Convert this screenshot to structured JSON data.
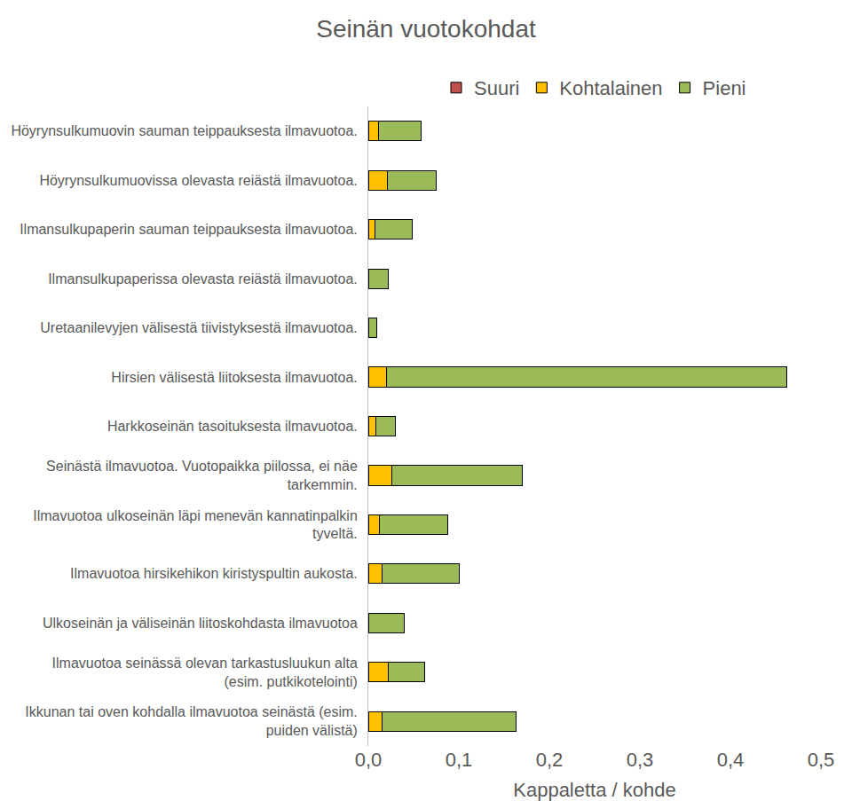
{
  "chart_data": {
    "type": "bar",
    "orientation": "horizontal",
    "stacked": true,
    "title": "Seinän vuotokohdat",
    "x_label": "Kappaletta / kohde",
    "legend": "top",
    "grid": false,
    "categories": [
      "Höyrynsulkumuovin sauman teippauksesta ilmavuotoa.",
      "Höyrynsulkumuovissa olevasta reiästä ilmavuotoa.",
      "Ilmansulkupaperin sauman teippauksesta ilmavuotoa.",
      "Ilmansulkupaperissa olevasta reiästä ilmavuotoa.",
      "Uretaanilevyjen välisestä tiivistyksestä ilmavuotoa.",
      "Hirsien välisestä liitoksesta ilmavuotoa.",
      "Harkkoseinän tasoituksesta ilmavuotoa.",
      "Seinästä ilmavuotoa. Vuotopaikka piilossa, ei näe tarkemmin.",
      "Ilmavuotoa ulkoseinän läpi menevän kannatinpalkin tyveltä.",
      "Ilmavuotoa hirsikehikon kiristyspultin aukosta.",
      "Ulkoseinän ja väliseinän liitoskohdasta ilmavuotoa",
      "Ilmavuotoa seinässä olevan tarkastusluukun alta (esim. putkikotelointi)",
      "Ikkunan tai oven kohdalla ilmavuotoa seinästä (esim. puiden välistä)"
    ],
    "series": [
      {
        "name": "Suuri",
        "color": "#c0504d",
        "values": [
          0,
          0,
          0,
          0,
          0,
          0,
          0,
          0,
          0,
          0,
          0,
          0,
          0
        ]
      },
      {
        "name": "Kohtalainen",
        "color": "#ffc000",
        "values": [
          0.011,
          0.021,
          0.007,
          0,
          0,
          0.02,
          0.008,
          0.026,
          0.012,
          0.015,
          0,
          0.022,
          0.015
        ]
      },
      {
        "name": "Pieni",
        "color": "#9bbb59",
        "values": [
          0.047,
          0.054,
          0.042,
          0.022,
          0.009,
          0.442,
          0.022,
          0.144,
          0.076,
          0.085,
          0.04,
          0.04,
          0.148
        ]
      }
    ],
    "xlim": [
      0,
      0.5
    ],
    "xticks": [
      {
        "value": 0,
        "label": "0,0"
      },
      {
        "value": 0.1,
        "label": "0,1"
      },
      {
        "value": 0.2,
        "label": "0,2"
      },
      {
        "value": 0.3,
        "label": "0,3"
      },
      {
        "value": 0.4,
        "label": "0,4"
      },
      {
        "value": 0.5,
        "label": "0,5"
      }
    ]
  }
}
